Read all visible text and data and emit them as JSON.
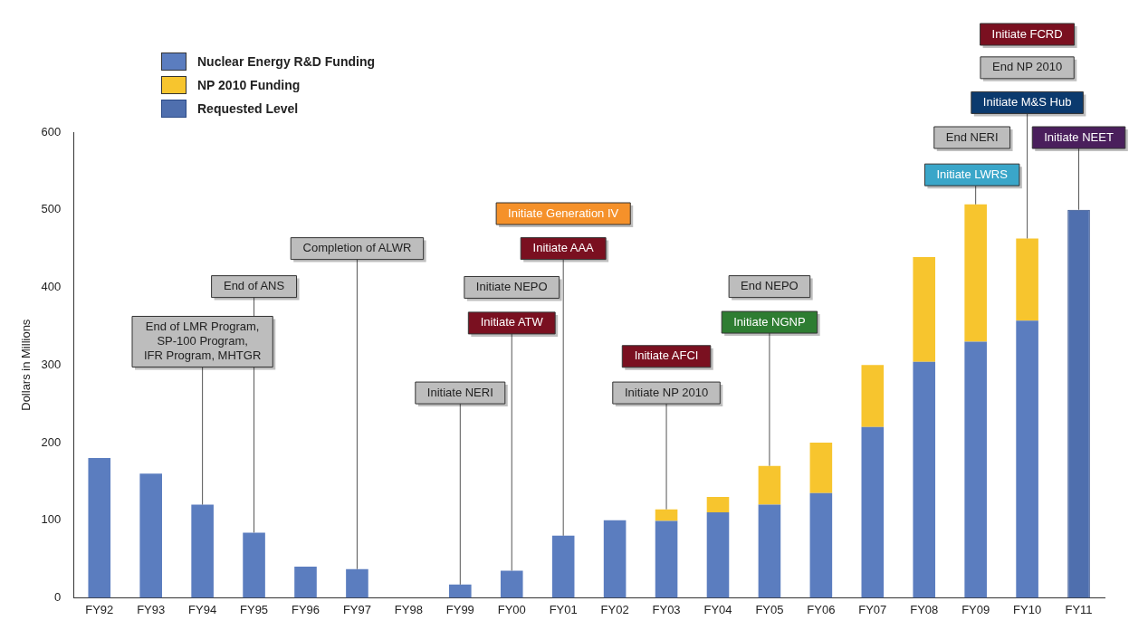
{
  "chart_data": {
    "type": "bar",
    "stacked": true,
    "ylabel": "Dollars in Millions",
    "legend": "top left",
    "grid": false,
    "categories": [
      "FY92",
      "FY93",
      "FY94",
      "FY95",
      "FY96",
      "FY97",
      "FY98",
      "FY99",
      "FY00",
      "FY01",
      "FY02",
      "FY03",
      "FY04",
      "FY05",
      "FY06",
      "FY07",
      "FY08",
      "FY09",
      "FY10",
      "FY11"
    ],
    "series": [
      {
        "name": "Nuclear Energy R&D Funding",
        "color": "#5b7dbf",
        "values": [
          180,
          160,
          120,
          84,
          40,
          37,
          0,
          17,
          35,
          80,
          100,
          99,
          110,
          120,
          135,
          220,
          304,
          330,
          357,
          null
        ]
      },
      {
        "name": "NP 2010 Funding",
        "color": "#f7c52e",
        "values": [
          null,
          null,
          null,
          null,
          null,
          null,
          null,
          null,
          null,
          null,
          null,
          15,
          20,
          50,
          65,
          80,
          135,
          177,
          106,
          null
        ]
      },
      {
        "name": "Requested Level",
        "color": "#4f6fae",
        "values": [
          null,
          null,
          null,
          null,
          null,
          null,
          null,
          null,
          null,
          null,
          null,
          null,
          null,
          null,
          null,
          null,
          null,
          null,
          null,
          500
        ]
      }
    ],
    "ylim": [
      0,
      600
    ],
    "yticks": [
      0,
      100,
      200,
      300,
      400,
      500,
      600
    ],
    "annotations": [
      {
        "text": "End of LMR Program,\nSP-100 Program,\nIFR Program, MHTGR",
        "x": "FY94"
      },
      {
        "text": "End of ANS",
        "x": "FY95"
      },
      {
        "text": "Completion of ALWR",
        "x": "FY97"
      },
      {
        "text": "Initiate NERI",
        "x": "FY99"
      },
      "Initiate Generation IV",
      {
        "text": "Initiate AAA",
        "x": "FY01"
      },
      "Initiate NEPO",
      {
        "text": "Initiate ATW",
        "x": "FY00"
      },
      "Initiate AFCI",
      {
        "text": "Initiate NP 2010",
        "x": "FY03"
      },
      "End NEPO",
      {
        "text": "Initiate NGNP",
        "x": "FY05"
      },
      "End NERI",
      {
        "text": "Initiate LWRS",
        "x": "FY09"
      },
      "Initiate FCRD",
      "End NP 2010",
      {
        "text": "Initiate M&S Hub",
        "x": "FY10"
      },
      {
        "text": "Initiate NEET",
        "x": "FY11"
      }
    ]
  }
}
